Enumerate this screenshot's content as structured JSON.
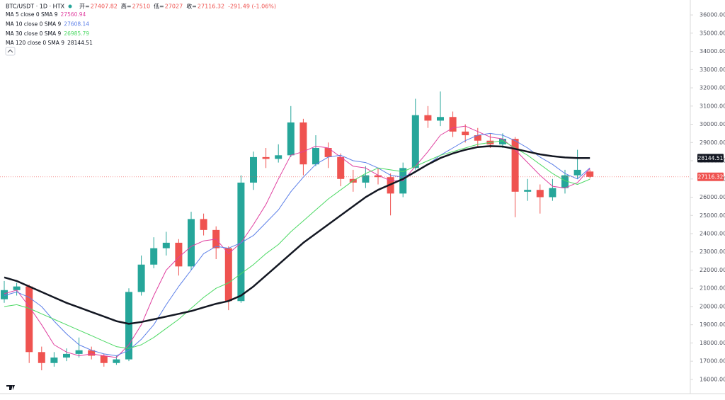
{
  "chart_data": {
    "type": "candlestick",
    "header": {
      "symbol": "BTC/USDT · 1D · HTX",
      "ohlc_labels": [
        "开=",
        "高=",
        "低=",
        "收="
      ],
      "change": "-291.49 (-1.06%)"
    },
    "ylim": [
      15220,
      36820
    ],
    "yticks": [
      {
        "value": 16000,
        "label": "16000.00"
      },
      {
        "value": 17000,
        "label": "17000.00"
      },
      {
        "value": 18000,
        "label": "18000.00"
      },
      {
        "value": 19000,
        "label": "19000.00"
      },
      {
        "value": 20000,
        "label": "20000.00"
      },
      {
        "value": 21000,
        "label": "21000.00"
      },
      {
        "value": 22000,
        "label": "22000.00"
      },
      {
        "value": 23000,
        "label": "23000.00"
      },
      {
        "value": 24000,
        "label": "24000.00"
      },
      {
        "value": 25000,
        "label": "25000.00"
      },
      {
        "value": 26000,
        "label": "26000.00"
      },
      {
        "value": 27000,
        "label": "27000.00"
      },
      {
        "value": 28000,
        "label": "28000.00"
      },
      {
        "value": 29000,
        "label": "29000.00"
      },
      {
        "value": 30000,
        "label": "30000.00"
      },
      {
        "value": 31000,
        "label": "31000.00"
      },
      {
        "value": 32000,
        "label": "32000.00"
      },
      {
        "value": 33000,
        "label": "33000.00"
      },
      {
        "value": 34000,
        "label": "34000.00"
      },
      {
        "value": 35000,
        "label": "35000.00"
      },
      {
        "value": 36000,
        "label": "36000.00"
      }
    ],
    "up_color": "#26a69a",
    "down_color": "#ef5350",
    "candles": [
      [
        20400,
        21400,
        20200,
        20900
      ],
      [
        20900,
        21300,
        20600,
        21100
      ],
      [
        21100,
        21200,
        16900,
        17500
      ],
      [
        17500,
        17800,
        16500,
        16900
      ],
      [
        16900,
        17500,
        16700,
        17200
      ],
      [
        17200,
        17700,
        17000,
        17400
      ],
      [
        17400,
        18300,
        17200,
        17600
      ],
      [
        17600,
        17800,
        17100,
        17300
      ],
      [
        17300,
        17400,
        16700,
        16900
      ],
      [
        16900,
        17300,
        16800,
        17100
      ],
      [
        17100,
        21000,
        17000,
        20800
      ],
      [
        20800,
        22800,
        20600,
        22300
      ],
      [
        22300,
        23800,
        22100,
        23200
      ],
      [
        23200,
        24100,
        22800,
        23500
      ],
      [
        23500,
        23700,
        21700,
        22200
      ],
      [
        22200,
        25200,
        22000,
        24800
      ],
      [
        24800,
        25100,
        23900,
        24200
      ],
      [
        24200,
        24400,
        22600,
        23200
      ],
      [
        23200,
        23300,
        19800,
        20300
      ],
      [
        20300,
        27200,
        20200,
        26800
      ],
      [
        26800,
        28500,
        26400,
        28200
      ],
      [
        28200,
        28700,
        27600,
        28100
      ],
      [
        28100,
        28900,
        27900,
        28300
      ],
      [
        28300,
        31000,
        28200,
        30100
      ],
      [
        30100,
        30300,
        27200,
        27800
      ],
      [
        27800,
        29400,
        27700,
        28700
      ],
      [
        28700,
        29000,
        27600,
        28200
      ],
      [
        28200,
        28400,
        26600,
        27000
      ],
      [
        27000,
        27500,
        26300,
        26800
      ],
      [
        26800,
        27700,
        26500,
        27200
      ],
      [
        27200,
        27600,
        26700,
        27100
      ],
      [
        27100,
        27300,
        25000,
        26200
      ],
      [
        26200,
        27900,
        26000,
        27600
      ],
      [
        27600,
        31400,
        27500,
        30500
      ],
      [
        30500,
        31000,
        29800,
        30200
      ],
      [
        30200,
        31800,
        29900,
        30400
      ],
      [
        30400,
        30700,
        29300,
        29600
      ],
      [
        29600,
        30000,
        29000,
        29400
      ],
      [
        29400,
        29800,
        28800,
        29100
      ],
      [
        29100,
        29500,
        28700,
        28900
      ],
      [
        28900,
        29500,
        28700,
        29200
      ],
      [
        29200,
        29300,
        24900,
        26300
      ],
      [
        26300,
        27000,
        25800,
        26400
      ],
      [
        26400,
        26700,
        25100,
        26000
      ],
      [
        26000,
        27000,
        25800,
        26500
      ],
      [
        26500,
        27500,
        26200,
        27200
      ],
      [
        27200,
        28600,
        27000,
        27500
      ],
      [
        27407.82,
        27510,
        27027,
        27116.32
      ]
    ],
    "series": [
      {
        "name": "MA 5 close 0 SMA 9",
        "color": "#e040a0",
        "line_width": 1,
        "values": [
          20700,
          20900,
          20000,
          19000,
          17900,
          17500,
          17300,
          17400,
          17300,
          17200,
          17900,
          19000,
          20600,
          22000,
          22700,
          23300,
          23600,
          23700,
          22900,
          23500,
          24500,
          25600,
          27000,
          28300,
          28500,
          28800,
          28700,
          28200,
          27700,
          27600,
          27200,
          26900,
          26900,
          27700,
          28500,
          29400,
          29800,
          29900,
          29600,
          29300,
          29200,
          28600,
          27900,
          27200,
          26600,
          26500,
          26800,
          27560.94
        ]
      },
      {
        "name": "MA 10 close 0 SMA 9",
        "color": "#5b7fe8",
        "line_width": 1,
        "values": [
          20600,
          20800,
          20500,
          20000,
          19200,
          18500,
          17900,
          17600,
          17400,
          17300,
          17600,
          18200,
          19000,
          20100,
          21100,
          22000,
          22900,
          23300,
          23200,
          23500,
          23900,
          24600,
          25300,
          26300,
          27100,
          27800,
          28200,
          28300,
          28000,
          27900,
          27600,
          27200,
          27100,
          27400,
          27800,
          28300,
          28700,
          29100,
          29400,
          29500,
          29400,
          29100,
          28700,
          28200,
          27800,
          27300,
          27000,
          27608.14
        ]
      },
      {
        "name": "MA 30 close 0 SMA 9",
        "color": "#4cd964",
        "line_width": 1,
        "values": [
          20000,
          20100,
          19900,
          19600,
          19300,
          19000,
          18700,
          18400,
          18100,
          17800,
          17700,
          17900,
          18300,
          18800,
          19300,
          19900,
          20500,
          21000,
          21300,
          21800,
          22300,
          22900,
          23400,
          24100,
          24700,
          25300,
          25900,
          26400,
          26900,
          27300,
          27600,
          27500,
          27400,
          27700,
          28000,
          28300,
          28500,
          28700,
          28900,
          29000,
          29100,
          28700,
          28300,
          27800,
          27300,
          26900,
          26700,
          26985.79
        ]
      },
      {
        "name": "MA 120 close 0 SMA 9",
        "color": "#131722",
        "line_width": 2.5,
        "values": [
          21600,
          21400,
          21100,
          20800,
          20500,
          20200,
          19950,
          19700,
          19450,
          19200,
          19050,
          19150,
          19300,
          19450,
          19600,
          19750,
          19950,
          20150,
          20300,
          20600,
          21100,
          21700,
          22300,
          22900,
          23500,
          24000,
          24500,
          25000,
          25500,
          26000,
          26400,
          26700,
          27000,
          27400,
          27800,
          28150,
          28400,
          28600,
          28750,
          28800,
          28780,
          28650,
          28500,
          28350,
          28250,
          28180,
          28150,
          28144.51
        ]
      }
    ]
  }
}
